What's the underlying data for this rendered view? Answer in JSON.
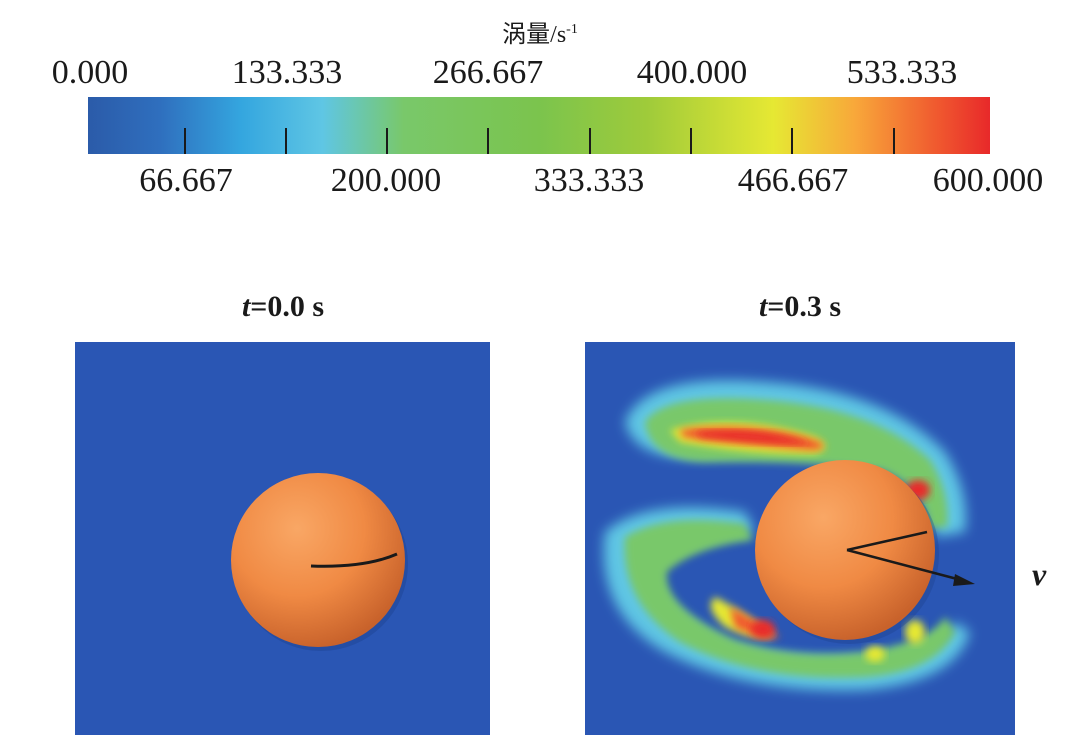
{
  "colorbar": {
    "title": "涡量/",
    "title_unit": "s",
    "title_exp": "-1",
    "top_labels": [
      "0.000",
      "133.333",
      "266.667",
      "400.000",
      "533.333"
    ],
    "bottom_labels": [
      "66.667",
      "200.000",
      "333.333",
      "466.667",
      "600.000"
    ]
  },
  "panels": [
    {
      "time_var": "t",
      "time_value": "=0.0 s"
    },
    {
      "time_var": "t",
      "time_value": "=0.3 s"
    }
  ],
  "velocity_label": "v",
  "colors": {
    "background_blue": "#2a56b4",
    "sphere_orange": "#f08a44",
    "vortex_red": "#e8292a"
  }
}
